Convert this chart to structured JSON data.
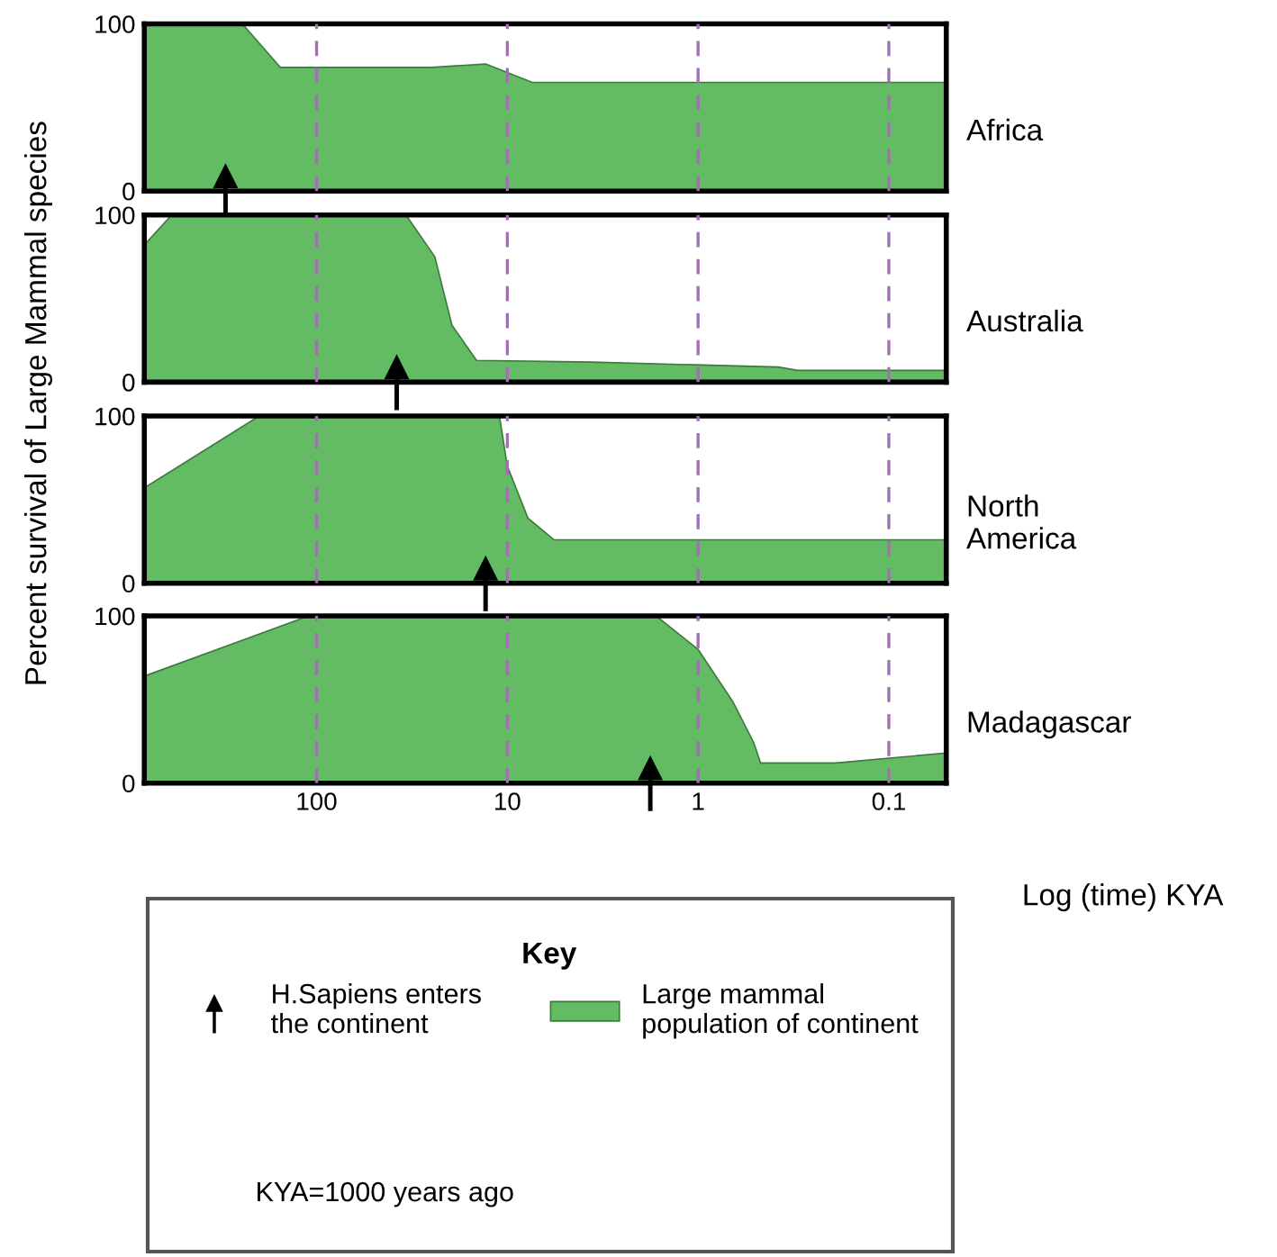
{
  "chart_data": [
    {
      "type": "area",
      "y2label": "Africa",
      "ylabel": "Percent survival of Large Mammal species",
      "log": "x",
      "xlim": [
        800,
        0.05
      ],
      "xticks": [
        100,
        10,
        1,
        0.1
      ],
      "ylim": [
        0,
        100
      ],
      "yticks": [
        0,
        100
      ],
      "grid": "x",
      "tick_labels": "y",
      "series": [
        {
          "type": "area",
          "color": "#63bb63",
          "x": [
            800,
            245,
            155,
            25,
            13,
            7.4,
            0.05
          ],
          "values": [
            100,
            100,
            74,
            74,
            76,
            65,
            65
          ]
        },
        {
          "type": "scatter",
          "color": "#000000",
          "marker": "triangle",
          "x": [
            300
          ],
          "values": [
            0
          ]
        }
      ]
    },
    {
      "type": "area",
      "y2label": "Australia",
      "log": "x",
      "xlim": [
        800,
        0.05
      ],
      "xticks": [
        100,
        10,
        1,
        0.1
      ],
      "ylim": [
        0,
        100
      ],
      "yticks": [
        0,
        100
      ],
      "grid": "x",
      "tick_labels": "y",
      "series": [
        {
          "type": "area",
          "color": "#63bb63",
          "x": [
            800,
            575,
            34,
            24,
            19.5,
            14.5,
            3.6,
            0.38,
            0.3,
            0.05
          ],
          "values": [
            82,
            100,
            100,
            75,
            34,
            13,
            12,
            9,
            7,
            7
          ]
        },
        {
          "type": "scatter",
          "color": "#000000",
          "marker": "triangle",
          "x": [
            38
          ],
          "values": [
            0
          ]
        }
      ]
    },
    {
      "type": "area",
      "y2label": "North\nAmerica",
      "log": "x",
      "xlim": [
        800,
        0.05
      ],
      "xticks": [
        100,
        10,
        1,
        0.1
      ],
      "ylim": [
        0,
        100
      ],
      "yticks": [
        0,
        100
      ],
      "grid": "x",
      "tick_labels": "y",
      "series": [
        {
          "type": "area",
          "color": "#63bb63",
          "x": [
            800,
            200,
            11,
            10,
            7.8,
            5.7,
            0.05
          ],
          "values": [
            57,
            100,
            100,
            70,
            39,
            26,
            26
          ]
        },
        {
          "type": "scatter",
          "color": "#000000",
          "marker": "triangle",
          "x": [
            13
          ],
          "values": [
            0
          ]
        }
      ]
    },
    {
      "type": "area",
      "y2label": "Madagascar",
      "xlabel": "Log (time) KYA",
      "log": "x",
      "xlim": [
        800,
        0.05
      ],
      "xticks": [
        100,
        10,
        1,
        0.1
      ],
      "ylim": [
        0,
        100
      ],
      "yticks": [
        0,
        100
      ],
      "grid": "x",
      "legend": "bottom",
      "legend_title": "Key",
      "annotations": [
        "KYA=1000 years ago"
      ],
      "series": [
        {
          "type": "area",
          "name": "Large mammal\npopulation of continent",
          "color": "#63bb63",
          "x": [
            800,
            110,
            1.66,
            1,
            0.66,
            0.51,
            0.47,
            0.19,
            0.05
          ],
          "values": [
            64,
            100,
            100,
            80,
            49,
            24,
            12,
            12,
            18
          ]
        },
        {
          "type": "scatter",
          "name": "H.Sapiens enters\nthe continent",
          "color": "#000000",
          "marker": "triangle",
          "x": [
            1.78
          ],
          "values": [
            0
          ]
        }
      ]
    }
  ]
}
